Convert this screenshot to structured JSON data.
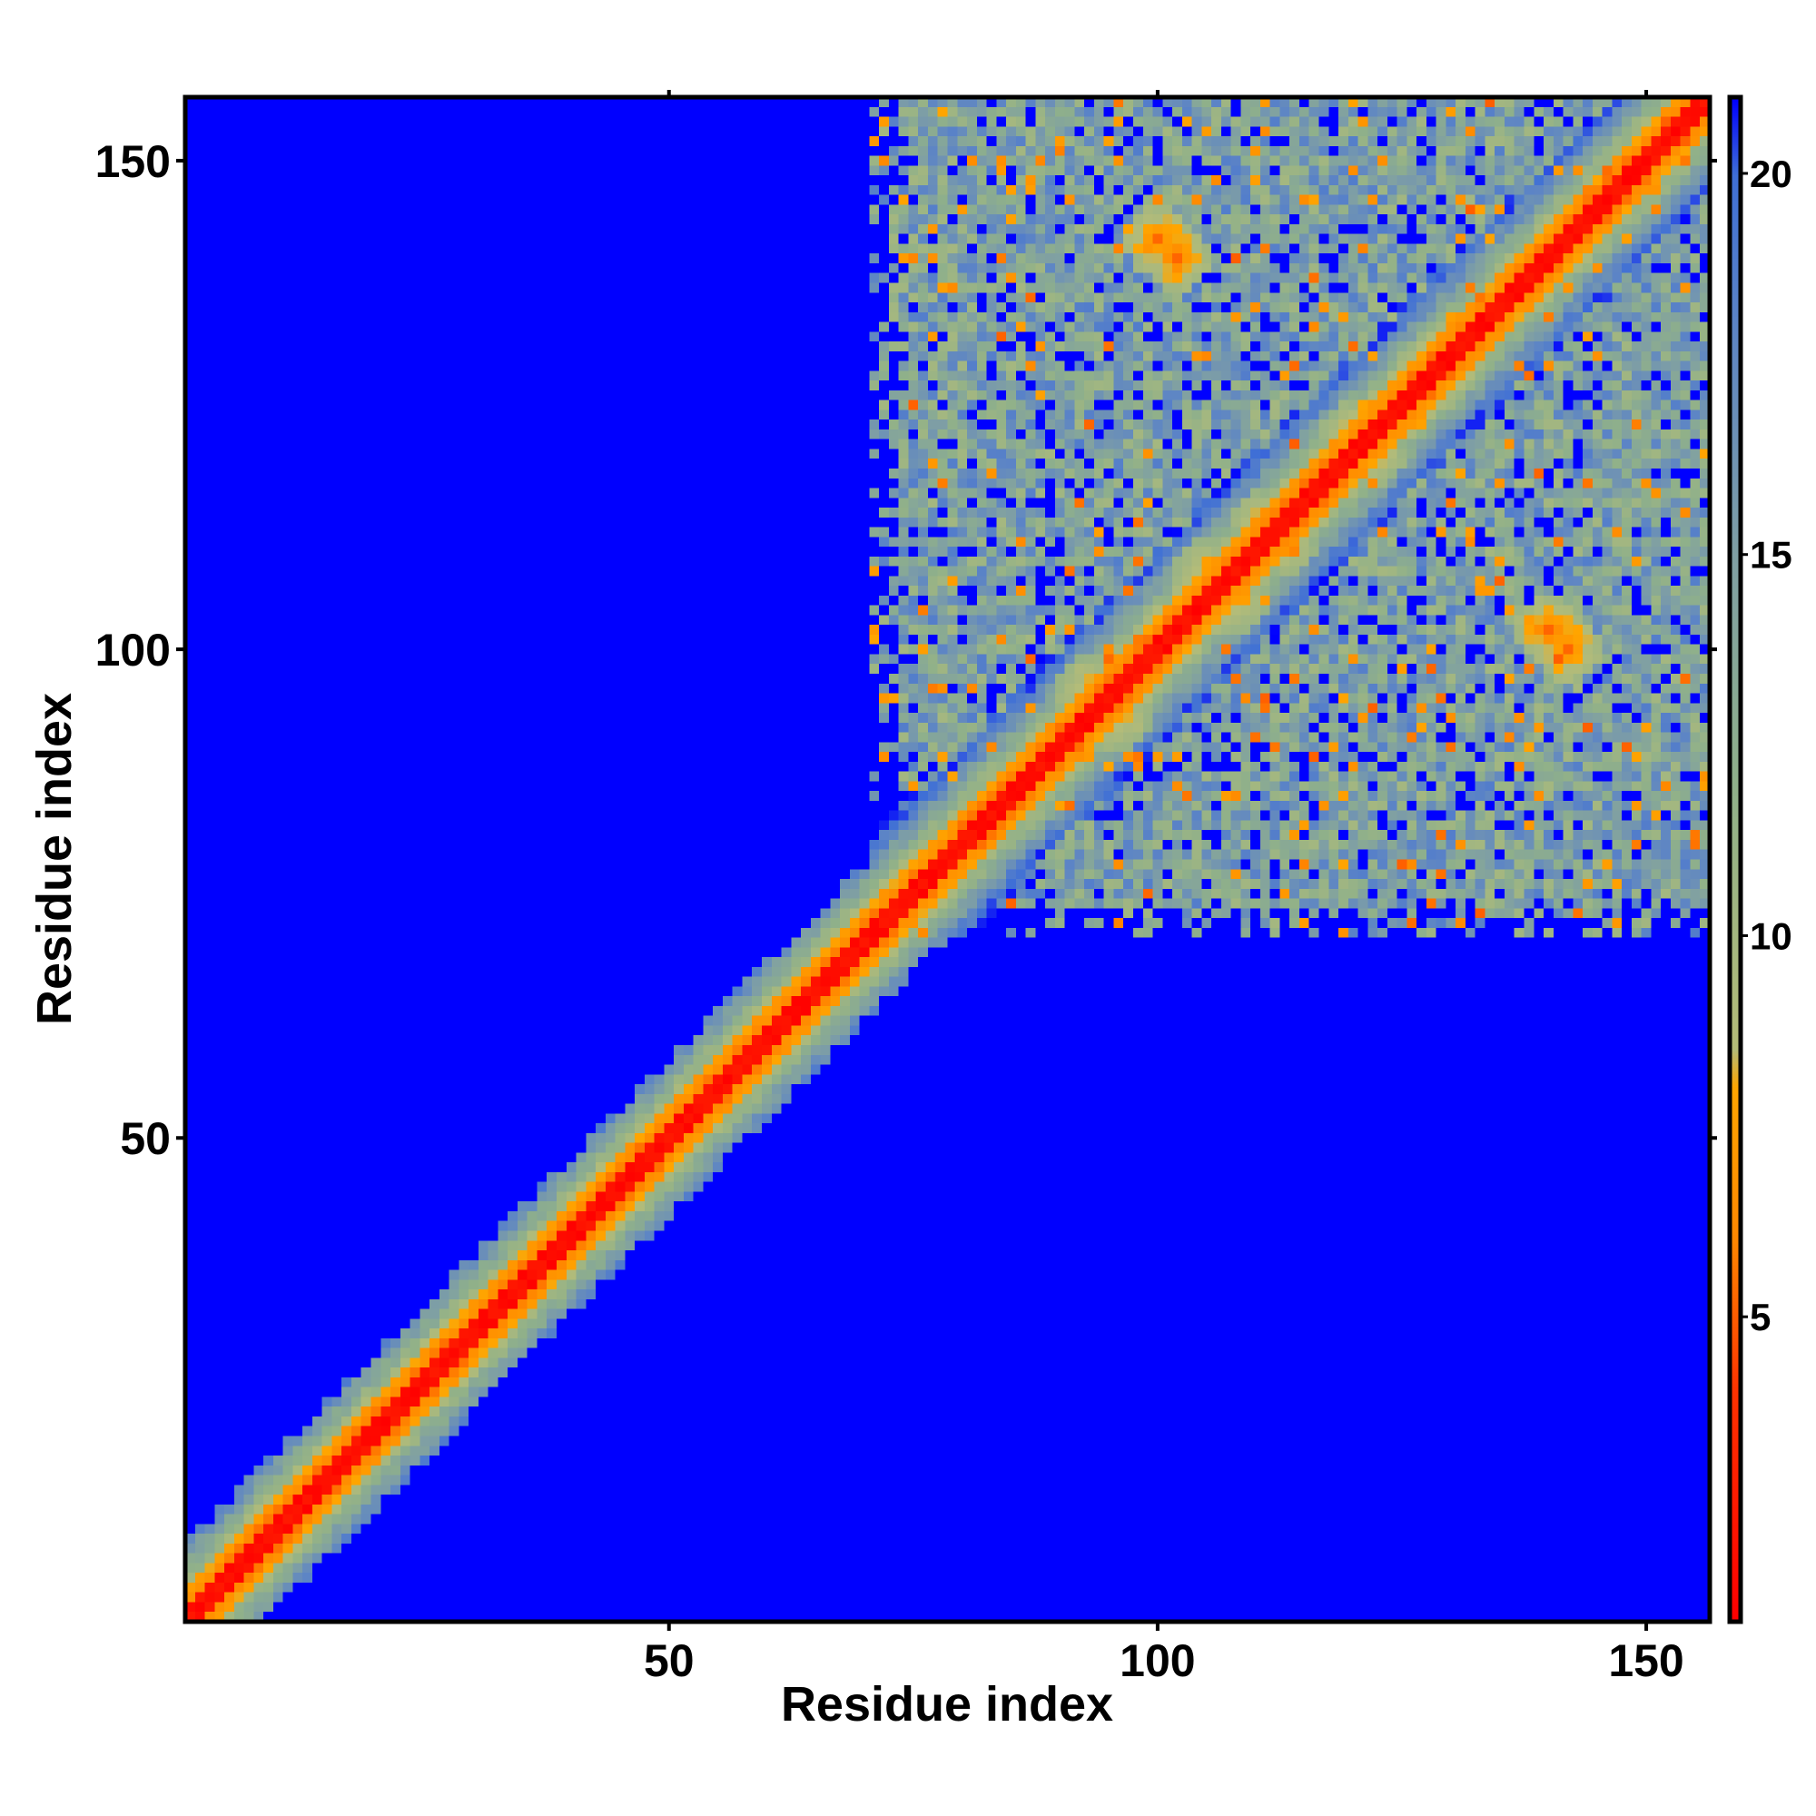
{
  "chart_data": {
    "type": "heatmap",
    "title": "",
    "xlabel": "Residue index",
    "ylabel": "Residue index",
    "n_residues": 156,
    "xlim": [
      1,
      156
    ],
    "ylim": [
      1,
      156
    ],
    "x_ticks": [
      50,
      100,
      150
    ],
    "y_ticks": [
      50,
      100,
      150
    ],
    "colorbar": {
      "min": 1,
      "max": 21,
      "ticks": [
        5,
        10,
        15,
        20
      ],
      "stops": [
        {
          "value": 1,
          "color": "#ff0000"
        },
        {
          "value": 4,
          "color": "#ff3300"
        },
        {
          "value": 6,
          "color": "#ff8800"
        },
        {
          "value": 8,
          "color": "#ffa500"
        },
        {
          "value": 8.5,
          "color": "#b4bc78"
        },
        {
          "value": 12,
          "color": "#8fb08a"
        },
        {
          "value": 15,
          "color": "#7f9fa4"
        },
        {
          "value": 18,
          "color": "#5c84c6"
        },
        {
          "value": 20,
          "color": "#3f6fd6"
        },
        {
          "value": 21,
          "color": "#0000ff"
        }
      ]
    },
    "background_value": 21,
    "colors": {
      "saturated": "#0000ff",
      "diagonal": "#ff0000"
    },
    "structure": {
      "diagonal_band": "near-diagonal contacts (|i-j| small) show distances 1-8, broadening with distance from diagonal",
      "domain_block": {
        "x_range": [
          71,
          156
        ],
        "y_range": [
          71,
          156
        ],
        "typical_value": 15
      },
      "contact_patches": [
        {
          "x": 100,
          "y": 142,
          "value": 5
        },
        {
          "x": 140,
          "y": 102,
          "value": 5
        },
        {
          "x": 93,
          "y": 96,
          "value": 6
        },
        {
          "x": 105,
          "y": 108,
          "value": 6
        },
        {
          "x": 111,
          "y": 113,
          "value": 6
        },
        {
          "x": 120,
          "y": 122,
          "value": 6
        },
        {
          "x": 128,
          "y": 129,
          "value": 6
        }
      ]
    }
  }
}
